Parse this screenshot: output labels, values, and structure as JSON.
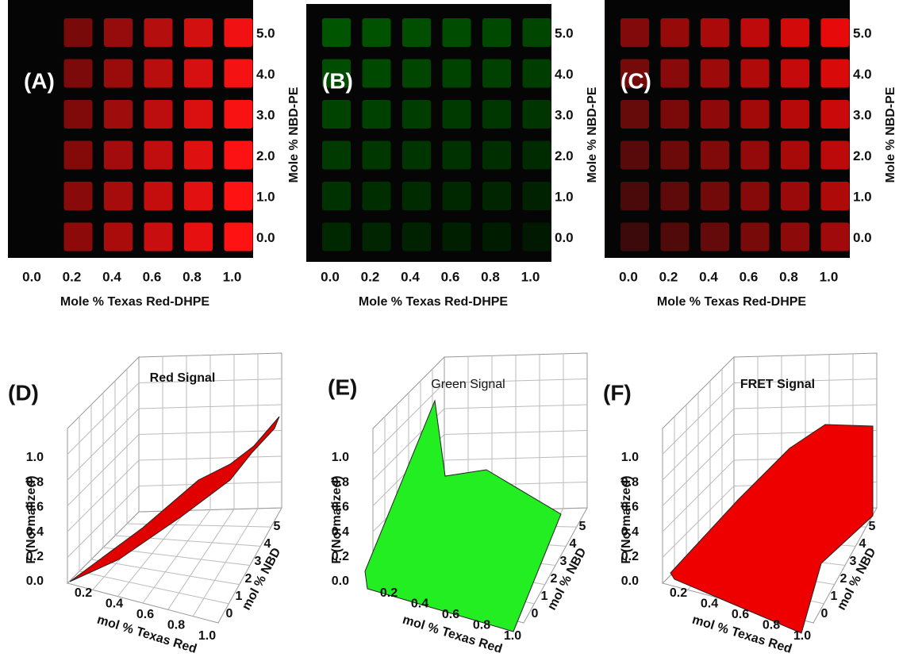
{
  "panels_top": [
    {
      "label": "(A)",
      "x_ticks": [
        "0.0",
        "0.2",
        "0.4",
        "0.6",
        "0.8",
        "1.0"
      ],
      "y_ticks": [
        "5.0",
        "4.0",
        "3.0",
        "2.0",
        "1.0",
        "0.0"
      ],
      "x_title": "Mole % Texas Red-DHPE",
      "y_title": "Mole % NBD-PE"
    },
    {
      "label": "(B)",
      "x_ticks": [
        "0.0",
        "0.2",
        "0.4",
        "0.6",
        "0.8",
        "1.0"
      ],
      "y_ticks": [
        "5.0",
        "4.0",
        "3.0",
        "2.0",
        "1.0",
        "0.0"
      ],
      "x_title": "Mole % Texas Red-DHPE",
      "y_title": "Mole % NBD-PE"
    },
    {
      "label": "(C)",
      "x_ticks": [
        "0.0",
        "0.2",
        "0.4",
        "0.6",
        "0.8",
        "1.0"
      ],
      "y_ticks": [
        "5.0",
        "4.0",
        "3.0",
        "2.0",
        "1.0",
        "0.0"
      ],
      "x_title": "Mole % Texas Red-DHPE",
      "y_title": "Mole % NBD-PE"
    }
  ],
  "panels_bottom": [
    {
      "label": "(D)",
      "title": "Red Signal",
      "z_title": "F (Normalized)",
      "z_ticks": [
        "0.0",
        "0.2",
        "0.4",
        "0.6",
        "0.8",
        "1.0"
      ],
      "x_title": "mol % Texas Red",
      "x_ticks": [
        "0.2",
        "0.4",
        "0.6",
        "0.8",
        "1.0"
      ],
      "y_title": "mol % NBD",
      "y_ticks": [
        "0",
        "1",
        "2",
        "3",
        "4",
        "5"
      ]
    },
    {
      "label": "(E)",
      "title": "Green Signal",
      "z_title": "F (Normalized)",
      "z_ticks": [
        "0.0",
        "0.2",
        "0.4",
        "0.6",
        "0.8",
        "1.0"
      ],
      "x_title": "mol % Texas Red",
      "x_ticks": [
        "0.2",
        "0.4",
        "0.6",
        "0.8",
        "1.0"
      ],
      "y_title": "mol % NBD",
      "y_ticks": [
        "0",
        "1",
        "2",
        "3",
        "4",
        "5"
      ]
    },
    {
      "label": "(F)",
      "title": "FRET Signal",
      "z_title": "F (Normalized)",
      "z_ticks": [
        "0.0",
        "0.2",
        "0.4",
        "0.6",
        "0.8",
        "1.0"
      ],
      "x_title": "mol % Texas Red",
      "x_ticks": [
        "0.2",
        "0.4",
        "0.6",
        "0.8",
        "1.0"
      ],
      "y_title": "mol % NBD",
      "y_ticks": [
        "0",
        "1",
        "2",
        "3",
        "4",
        "5"
      ]
    }
  ]
}
